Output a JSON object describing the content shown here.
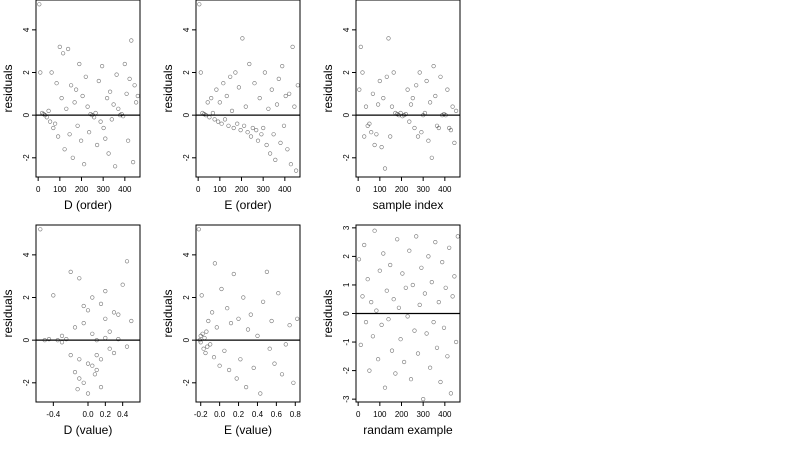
{
  "figure": {
    "background": "#ffffff",
    "point_color": "#000000",
    "point_marker": "open-circle"
  },
  "chart_data": [
    {
      "type": "scatter",
      "panel": "top-left",
      "xlabel": "D (order)",
      "ylabel": "residuals",
      "xlim": [
        -10,
        470
      ],
      "ylim": [
        -2.9,
        5.4
      ],
      "xticks": [
        0,
        100,
        200,
        300,
        400
      ],
      "yticks": [
        -2,
        0,
        2,
        4
      ],
      "hline": 0,
      "grid": false,
      "pattern": "residuals vs D order; wide scatter -2.5..3.5, flat runs near 0 at ~0-60, 240-270, 380-420; dips near 300",
      "x": [
        5,
        10,
        18,
        25,
        32,
        40,
        48,
        55,
        62,
        70,
        78,
        85,
        92,
        100,
        108,
        115,
        122,
        130,
        138,
        145,
        152,
        160,
        168,
        175,
        182,
        190,
        198,
        205,
        212,
        220,
        228,
        235,
        242,
        250,
        258,
        265,
        272,
        280,
        288,
        295,
        302,
        310,
        318,
        325,
        332,
        340,
        348,
        355,
        362,
        370,
        378,
        385,
        392,
        400,
        408,
        415,
        422,
        430,
        438,
        445,
        452,
        460
      ],
      "y": [
        5.2,
        2.0,
        0.1,
        0.05,
        0.0,
        -0.1,
        0.2,
        -0.3,
        2.0,
        -0.6,
        -0.4,
        1.5,
        -1.0,
        3.2,
        0.8,
        2.9,
        -1.6,
        0.3,
        3.1,
        -0.9,
        1.4,
        -2.0,
        0.6,
        1.2,
        -0.5,
        2.4,
        -1.2,
        0.9,
        -2.3,
        1.8,
        0.4,
        -0.8,
        0.05,
        0.0,
        -0.1,
        0.1,
        -1.4,
        1.6,
        -0.3,
        2.3,
        -0.6,
        -1.1,
        0.8,
        -1.8,
        1.1,
        -0.2,
        0.5,
        -2.4,
        1.9,
        0.3,
        0.0,
        0.05,
        -0.05,
        2.4,
        1.0,
        -1.2,
        1.7,
        3.5,
        -2.2,
        1.4,
        0.6,
        0.9
      ]
    },
    {
      "type": "scatter",
      "panel": "top-middle",
      "xlabel": "E (order)",
      "ylabel": "residuals",
      "xlim": [
        -10,
        470
      ],
      "ylim": [
        -2.9,
        5.4
      ],
      "xticks": [
        0,
        100,
        200,
        300,
        400
      ],
      "yticks": [
        -2,
        0,
        2,
        4
      ],
      "hline": 0,
      "grid": false,
      "pattern": "residuals vs E order; dense curved band trending downward from 0 at 0 to about -0.8 near 300, widening spread",
      "x": [
        5,
        12,
        20,
        28,
        36,
        44,
        52,
        60,
        68,
        76,
        84,
        92,
        100,
        108,
        116,
        124,
        132,
        140,
        148,
        156,
        164,
        172,
        180,
        188,
        196,
        204,
        212,
        220,
        228,
        236,
        244,
        252,
        260,
        268,
        276,
        284,
        292,
        300,
        308,
        316,
        324,
        332,
        340,
        348,
        356,
        364,
        372,
        380,
        388,
        396,
        404,
        412,
        420,
        428,
        436,
        444,
        452,
        460
      ],
      "y": [
        5.2,
        2.0,
        0.1,
        0.05,
        0.0,
        0.6,
        -0.1,
        0.8,
        0.1,
        -0.2,
        1.2,
        -0.3,
        0.6,
        -0.4,
        1.5,
        -0.2,
        0.9,
        -0.5,
        1.8,
        0.2,
        -0.6,
        2.0,
        -0.4,
        1.3,
        -0.7,
        3.6,
        -0.5,
        0.4,
        -0.8,
        2.4,
        -1.0,
        -0.6,
        1.5,
        -0.7,
        -1.2,
        0.8,
        -0.9,
        -0.6,
        2.0,
        -1.4,
        0.3,
        -1.8,
        1.2,
        -0.9,
        -2.1,
        0.5,
        1.7,
        -1.3,
        2.3,
        -0.5,
        0.9,
        -1.6,
        1.0,
        -2.3,
        3.2,
        0.4,
        -2.6,
        1.4
      ]
    },
    {
      "type": "scatter",
      "panel": "top-right",
      "xlabel": "sample index",
      "ylabel": "residuals",
      "xlim": [
        -10,
        470
      ],
      "ylim": [
        -2.9,
        5.4
      ],
      "xticks": [
        0,
        100,
        200,
        300,
        400
      ],
      "yticks": [
        -2,
        0,
        2,
        4
      ],
      "hline": 0,
      "grid": false,
      "pattern": "residuals vs sample index; clusters of wavy vertical dips near 40-80 and 100-150, flat run 180-300",
      "x": [
        5,
        12,
        20,
        28,
        36,
        44,
        52,
        60,
        68,
        76,
        84,
        92,
        100,
        108,
        116,
        124,
        132,
        140,
        148,
        156,
        164,
        172,
        180,
        188,
        196,
        204,
        212,
        220,
        228,
        236,
        244,
        252,
        260,
        268,
        276,
        284,
        292,
        300,
        308,
        316,
        324,
        332,
        340,
        348,
        356,
        364,
        372,
        380,
        388,
        396,
        404,
        412,
        420,
        428,
        436,
        444,
        452
      ],
      "y": [
        1.2,
        3.2,
        2.0,
        -1.0,
        0.4,
        -0.5,
        -0.4,
        -0.8,
        1.0,
        -1.4,
        -0.9,
        0.5,
        1.6,
        -1.5,
        0.8,
        -2.5,
        1.8,
        3.6,
        -1.0,
        0.4,
        2.0,
        0.1,
        0.05,
        0.0,
        0.1,
        -0.05,
        0.0,
        0.05,
        1.2,
        -0.3,
        0.5,
        0.8,
        -0.6,
        1.4,
        -1.0,
        2.0,
        -0.8,
        0.0,
        0.1,
        1.6,
        -1.2,
        0.6,
        -2.0,
        2.3,
        0.9,
        -0.5,
        -0.6,
        1.8,
        0.0,
        0.05,
        0.0,
        1.2,
        -0.6,
        -0.7,
        0.4,
        -1.3,
        0.2
      ]
    },
    {
      "type": "scatter",
      "panel": "bottom-left",
      "xlabel": "D (value)",
      "ylabel": "residuals",
      "xlim": [
        -0.6,
        0.6
      ],
      "ylim": [
        -2.9,
        5.4
      ],
      "xticks": [
        -0.4,
        0.0,
        0.2,
        0.4
      ],
      "xtick_labels": [
        "-0.4",
        "0.0",
        "0.2",
        "0.4"
      ],
      "yticks": [
        -2,
        0,
        2,
        4
      ],
      "hline": 0,
      "grid": false,
      "pattern": "residuals vs D value; vertical stripes at discrete D values concentrated -0.2..0.2",
      "x": [
        -0.55,
        -0.5,
        -0.45,
        -0.4,
        -0.35,
        -0.3,
        -0.25,
        -0.2,
        -0.15,
        -0.15,
        -0.1,
        -0.1,
        -0.05,
        -0.05,
        0.0,
        0.0,
        0.05,
        0.05,
        0.1,
        0.1,
        0.15,
        0.15,
        0.2,
        0.2,
        0.25,
        0.3,
        0.35,
        0.4,
        0.45,
        0.5,
        -0.2,
        -0.1,
        0.0,
        0.1,
        0.2,
        0.3,
        -0.3,
        -0.05,
        0.05,
        0.15,
        0.25,
        0.35,
        0.45,
        -0.12,
        0.08
      ],
      "y": [
        5.2,
        0.0,
        0.05,
        2.1,
        0.0,
        -0.1,
        0.05,
        3.2,
        -1.5,
        0.6,
        2.9,
        -0.9,
        -2.0,
        0.8,
        1.4,
        -2.5,
        0.3,
        -1.2,
        0.0,
        -0.7,
        1.7,
        -2.2,
        0.1,
        2.3,
        -0.4,
        1.3,
        0.05,
        2.6,
        -0.3,
        0.9,
        -0.7,
        -1.8,
        -1.1,
        -1.4,
        1.0,
        -0.6,
        0.2,
        1.6,
        2.0,
        -0.9,
        0.4,
        1.2,
        3.7,
        -2.3,
        -1.6
      ]
    },
    {
      "type": "scatter",
      "panel": "bottom-middle",
      "xlabel": "E (value)",
      "ylabel": "residuals",
      "xlim": [
        -0.25,
        0.85
      ],
      "ylim": [
        -2.9,
        5.4
      ],
      "xticks": [
        -0.2,
        0.0,
        0.2,
        0.4,
        0.6,
        0.8
      ],
      "xtick_labels": [
        "-0.2",
        "0.0",
        "0.2",
        "0.4",
        "0.6",
        "0.8"
      ],
      "yticks": [
        -2,
        0,
        2,
        4
      ],
      "hline": 0,
      "grid": false,
      "pattern": "residuals vs E value; dense cluster near -0.2..0.0 around 0, trending down, sparse scatter toward 0.8",
      "x": [
        -0.22,
        -0.21,
        -0.2,
        -0.2,
        -0.19,
        -0.18,
        -0.17,
        -0.16,
        -0.15,
        -0.14,
        -0.13,
        -0.12,
        -0.1,
        -0.08,
        -0.06,
        -0.05,
        -0.03,
        0.0,
        0.02,
        0.05,
        0.08,
        0.1,
        0.12,
        0.15,
        0.18,
        0.2,
        0.22,
        0.25,
        0.28,
        0.3,
        0.33,
        0.36,
        0.4,
        0.43,
        0.46,
        0.5,
        0.53,
        0.55,
        0.58,
        0.62,
        0.66,
        0.7,
        0.74,
        0.78,
        0.82
      ],
      "y": [
        5.2,
        0.0,
        0.2,
        -0.1,
        2.1,
        0.3,
        -0.4,
        0.1,
        -0.6,
        0.4,
        -0.3,
        0.9,
        -0.2,
        1.3,
        -0.8,
        3.6,
        0.6,
        -1.2,
        2.4,
        -0.5,
        1.5,
        -1.4,
        0.8,
        3.1,
        -1.8,
        1.0,
        -0.9,
        2.0,
        -2.2,
        0.5,
        1.2,
        -1.3,
        0.2,
        -2.5,
        1.8,
        3.2,
        -0.4,
        0.9,
        -1.1,
        2.2,
        -1.6,
        -0.2,
        0.7,
        -2.0,
        1.0
      ]
    },
    {
      "type": "scatter",
      "panel": "bottom-right",
      "xlabel": "randam example",
      "ylabel": "residuals",
      "xlim": [
        -10,
        470
      ],
      "ylim": [
        -3.1,
        3.1
      ],
      "xticks": [
        0,
        100,
        200,
        300,
        400
      ],
      "yticks": [
        -3,
        -2,
        -1,
        0,
        1,
        2,
        3
      ],
      "hline": 0,
      "grid": false,
      "pattern": "uniformly random residuals -3..3 across index 0..460",
      "x": [
        4,
        12,
        20,
        28,
        36,
        44,
        52,
        60,
        68,
        76,
        84,
        92,
        100,
        108,
        116,
        124,
        132,
        140,
        148,
        156,
        164,
        172,
        180,
        188,
        196,
        204,
        212,
        220,
        228,
        236,
        244,
        252,
        260,
        268,
        276,
        284,
        292,
        300,
        308,
        316,
        324,
        332,
        340,
        348,
        356,
        364,
        372,
        380,
        388,
        396,
        404,
        412,
        420,
        428,
        436,
        444,
        452,
        460
      ],
      "y": [
        1.9,
        -1.1,
        0.6,
        2.4,
        -0.3,
        1.2,
        -2.0,
        0.4,
        -0.8,
        2.9,
        0.1,
        -1.6,
        1.5,
        -0.4,
        2.1,
        -2.6,
        0.8,
        -0.2,
        1.7,
        -1.3,
        0.5,
        -2.1,
        2.6,
        0.2,
        -0.9,
        1.4,
        -1.7,
        0.9,
        -0.1,
        2.2,
        -2.3,
        1.0,
        -0.6,
        2.7,
        -1.4,
        0.3,
        1.6,
        -3.0,
        0.7,
        -0.7,
        2.0,
        -1.9,
        1.1,
        -0.3,
        2.5,
        -1.2,
        0.4,
        -2.4,
        1.8,
        -0.5,
        0.9,
        -1.5,
        2.3,
        -2.8,
        0.6,
        1.3,
        -1.0,
        2.7
      ]
    }
  ]
}
